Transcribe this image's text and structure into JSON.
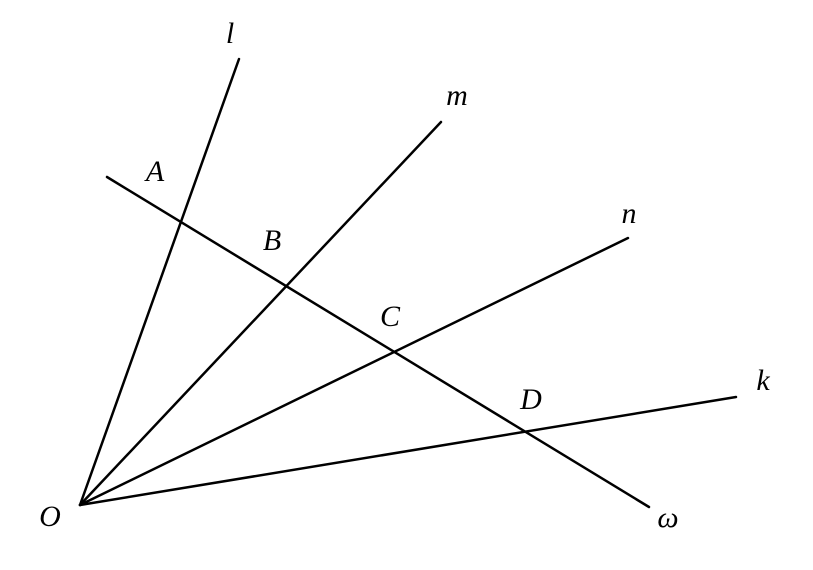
{
  "rays": [
    "l",
    "m",
    "n",
    "k"
  ],
  "transversal": "ω",
  "points": [
    "A",
    "B",
    "C",
    "D"
  ],
  "origin": "O"
}
